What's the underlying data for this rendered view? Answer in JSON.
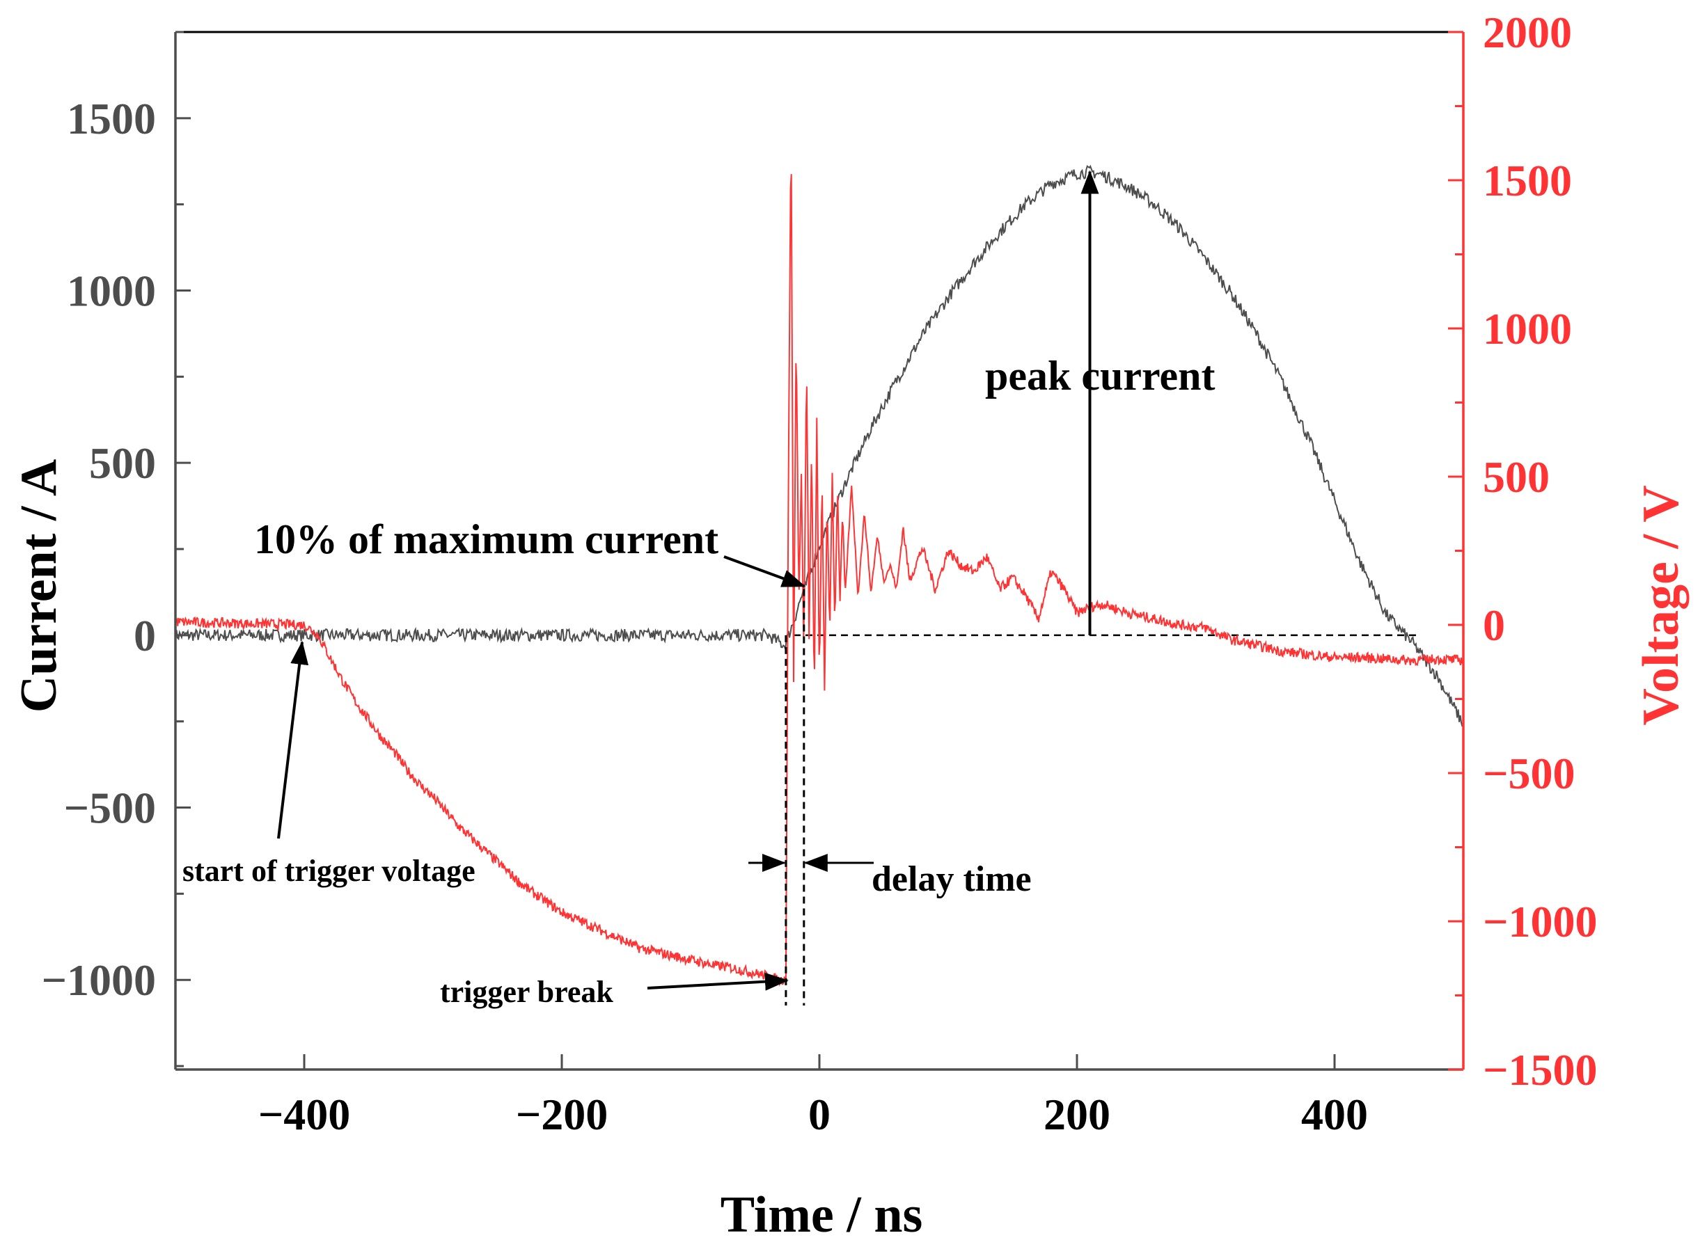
{
  "chart_data": {
    "type": "line",
    "title": "",
    "xlabel": "Time  / ns",
    "ylabel_left": "Current  / A",
    "ylabel_right": "Voltage  / V",
    "xlim": [
      -500,
      500
    ],
    "ylim_left": [
      -1260,
      1750
    ],
    "ylim_right": [
      -1500,
      2000
    ],
    "x_ticks": [
      -400,
      -200,
      0,
      200,
      400
    ],
    "x_tick_labels": [
      "−400",
      "−200",
      "0",
      "200",
      "400"
    ],
    "left_ticks": [
      -1000,
      -500,
      0,
      500,
      1000,
      1500
    ],
    "left_tick_labels": [
      "−1000",
      "−500",
      "0",
      "500",
      "1000",
      "1500"
    ],
    "right_ticks": [
      -1500,
      -1000,
      -500,
      0,
      500,
      1000,
      1500,
      2000
    ],
    "right_tick_labels": [
      "−1500",
      "−1000",
      "−500",
      "0",
      "500",
      "1000",
      "1500",
      "2000"
    ],
    "colors": {
      "current": "#4d4d4d",
      "voltage": "#ff3333",
      "axis_left": "#4d4d4d",
      "axis_right": "#ff3333"
    },
    "series": [
      {
        "name": "Current",
        "axis": "left",
        "x": [
          -500,
          -400,
          -300,
          -200,
          -100,
          -40,
          -27,
          -20,
          -15,
          -10,
          0,
          20,
          40,
          60,
          80,
          100,
          120,
          140,
          160,
          180,
          200,
          210,
          220,
          240,
          260,
          280,
          300,
          320,
          340,
          360,
          380,
          400,
          420,
          440,
          460,
          480,
          500
        ],
        "y": [
          0,
          0,
          0,
          0,
          0,
          0,
          -30,
          40,
          100,
          150,
          260,
          440,
          600,
          740,
          870,
          980,
          1080,
          1170,
          1250,
          1310,
          1340,
          1345,
          1335,
          1300,
          1250,
          1180,
          1090,
          990,
          870,
          730,
          570,
          390,
          210,
          60,
          -20,
          -120,
          -260
        ]
      },
      {
        "name": "Voltage",
        "axis": "right",
        "x": [
          -500,
          -400,
          -390,
          -380,
          -370,
          -360,
          -350,
          -340,
          -330,
          -320,
          -310,
          -300,
          -290,
          -280,
          -270,
          -260,
          -250,
          -240,
          -230,
          -220,
          -210,
          -200,
          -190,
          -180,
          -170,
          -160,
          -150,
          -140,
          -130,
          -120,
          -110,
          -100,
          -90,
          -80,
          -70,
          -60,
          -50,
          -40,
          -30,
          -26,
          -24,
          -22,
          -20,
          -18,
          -16,
          -14,
          -12,
          -10,
          -8,
          -6,
          -4,
          -2,
          0,
          2,
          4,
          6,
          8,
          10,
          12,
          14,
          16,
          18,
          20,
          25,
          30,
          35,
          40,
          45,
          50,
          55,
          60,
          65,
          70,
          80,
          90,
          100,
          110,
          120,
          130,
          140,
          150,
          160,
          170,
          180,
          190,
          200,
          210,
          220,
          240,
          260,
          280,
          300,
          320,
          340,
          360,
          380,
          400,
          420,
          440,
          460,
          480,
          500
        ],
        "y": [
          10,
          0,
          -30,
          -110,
          -190,
          -260,
          -320,
          -380,
          -430,
          -490,
          -540,
          -580,
          -630,
          -680,
          -720,
          -760,
          -800,
          -840,
          -880,
          -910,
          -940,
          -970,
          -990,
          -1010,
          -1030,
          -1050,
          -1070,
          -1090,
          -1100,
          -1110,
          -1120,
          -1130,
          -1140,
          -1150,
          -1155,
          -1165,
          -1175,
          -1185,
          -1200,
          -1190,
          500,
          1720,
          -200,
          1000,
          80,
          500,
          -100,
          900,
          -50,
          600,
          -250,
          700,
          -200,
          500,
          -220,
          420,
          -40,
          520,
          -10,
          470,
          80,
          380,
          100,
          470,
          100,
          380,
          110,
          300,
          150,
          200,
          120,
          330,
          150,
          260,
          120,
          250,
          200,
          180,
          230,
          120,
          160,
          100,
          20,
          180,
          120,
          40,
          60,
          70,
          40,
          20,
          0,
          -10,
          -50,
          -70,
          -90,
          -100,
          -110,
          -110,
          -115,
          -120,
          -115,
          -120
        ]
      }
    ],
    "annotations": {
      "peak_current": "peak current",
      "ten_percent": "10% of maximum current",
      "start_trigger": "start of trigger voltage",
      "delay_time": "delay time",
      "trigger_break": "trigger break"
    },
    "annotation_points": {
      "peak_time": 210,
      "peak_current": 1345,
      "ten_percent_time": -10,
      "ten_percent_current": 134,
      "start_trigger_time": -400,
      "trigger_break_time": -26,
      "trigger_break_voltage": -1190,
      "delay_start_time": -26,
      "delay_end_time": -12
    }
  }
}
